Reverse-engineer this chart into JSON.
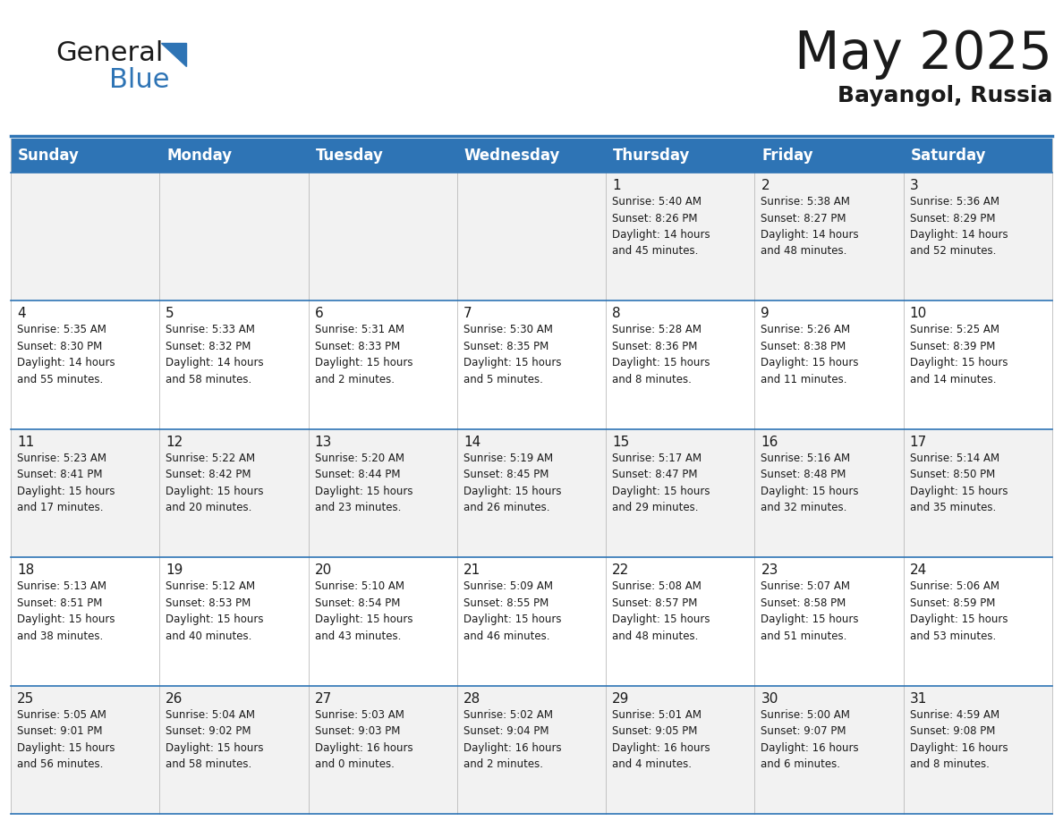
{
  "title": "May 2025",
  "subtitle": "Bayangol, Russia",
  "header_color": "#2E74B5",
  "header_text_color": "#FFFFFF",
  "cell_bg_odd": "#F2F2F2",
  "cell_bg_even": "#FFFFFF",
  "border_color": "#2E74B5",
  "text_color": "#1a1a1a",
  "days_of_week": [
    "Sunday",
    "Monday",
    "Tuesday",
    "Wednesday",
    "Thursday",
    "Friday",
    "Saturday"
  ],
  "weeks": [
    [
      {
        "day": "",
        "info": ""
      },
      {
        "day": "",
        "info": ""
      },
      {
        "day": "",
        "info": ""
      },
      {
        "day": "",
        "info": ""
      },
      {
        "day": "1",
        "info": "Sunrise: 5:40 AM\nSunset: 8:26 PM\nDaylight: 14 hours\nand 45 minutes."
      },
      {
        "day": "2",
        "info": "Sunrise: 5:38 AM\nSunset: 8:27 PM\nDaylight: 14 hours\nand 48 minutes."
      },
      {
        "day": "3",
        "info": "Sunrise: 5:36 AM\nSunset: 8:29 PM\nDaylight: 14 hours\nand 52 minutes."
      }
    ],
    [
      {
        "day": "4",
        "info": "Sunrise: 5:35 AM\nSunset: 8:30 PM\nDaylight: 14 hours\nand 55 minutes."
      },
      {
        "day": "5",
        "info": "Sunrise: 5:33 AM\nSunset: 8:32 PM\nDaylight: 14 hours\nand 58 minutes."
      },
      {
        "day": "6",
        "info": "Sunrise: 5:31 AM\nSunset: 8:33 PM\nDaylight: 15 hours\nand 2 minutes."
      },
      {
        "day": "7",
        "info": "Sunrise: 5:30 AM\nSunset: 8:35 PM\nDaylight: 15 hours\nand 5 minutes."
      },
      {
        "day": "8",
        "info": "Sunrise: 5:28 AM\nSunset: 8:36 PM\nDaylight: 15 hours\nand 8 minutes."
      },
      {
        "day": "9",
        "info": "Sunrise: 5:26 AM\nSunset: 8:38 PM\nDaylight: 15 hours\nand 11 minutes."
      },
      {
        "day": "10",
        "info": "Sunrise: 5:25 AM\nSunset: 8:39 PM\nDaylight: 15 hours\nand 14 minutes."
      }
    ],
    [
      {
        "day": "11",
        "info": "Sunrise: 5:23 AM\nSunset: 8:41 PM\nDaylight: 15 hours\nand 17 minutes."
      },
      {
        "day": "12",
        "info": "Sunrise: 5:22 AM\nSunset: 8:42 PM\nDaylight: 15 hours\nand 20 minutes."
      },
      {
        "day": "13",
        "info": "Sunrise: 5:20 AM\nSunset: 8:44 PM\nDaylight: 15 hours\nand 23 minutes."
      },
      {
        "day": "14",
        "info": "Sunrise: 5:19 AM\nSunset: 8:45 PM\nDaylight: 15 hours\nand 26 minutes."
      },
      {
        "day": "15",
        "info": "Sunrise: 5:17 AM\nSunset: 8:47 PM\nDaylight: 15 hours\nand 29 minutes."
      },
      {
        "day": "16",
        "info": "Sunrise: 5:16 AM\nSunset: 8:48 PM\nDaylight: 15 hours\nand 32 minutes."
      },
      {
        "day": "17",
        "info": "Sunrise: 5:14 AM\nSunset: 8:50 PM\nDaylight: 15 hours\nand 35 minutes."
      }
    ],
    [
      {
        "day": "18",
        "info": "Sunrise: 5:13 AM\nSunset: 8:51 PM\nDaylight: 15 hours\nand 38 minutes."
      },
      {
        "day": "19",
        "info": "Sunrise: 5:12 AM\nSunset: 8:53 PM\nDaylight: 15 hours\nand 40 minutes."
      },
      {
        "day": "20",
        "info": "Sunrise: 5:10 AM\nSunset: 8:54 PM\nDaylight: 15 hours\nand 43 minutes."
      },
      {
        "day": "21",
        "info": "Sunrise: 5:09 AM\nSunset: 8:55 PM\nDaylight: 15 hours\nand 46 minutes."
      },
      {
        "day": "22",
        "info": "Sunrise: 5:08 AM\nSunset: 8:57 PM\nDaylight: 15 hours\nand 48 minutes."
      },
      {
        "day": "23",
        "info": "Sunrise: 5:07 AM\nSunset: 8:58 PM\nDaylight: 15 hours\nand 51 minutes."
      },
      {
        "day": "24",
        "info": "Sunrise: 5:06 AM\nSunset: 8:59 PM\nDaylight: 15 hours\nand 53 minutes."
      }
    ],
    [
      {
        "day": "25",
        "info": "Sunrise: 5:05 AM\nSunset: 9:01 PM\nDaylight: 15 hours\nand 56 minutes."
      },
      {
        "day": "26",
        "info": "Sunrise: 5:04 AM\nSunset: 9:02 PM\nDaylight: 15 hours\nand 58 minutes."
      },
      {
        "day": "27",
        "info": "Sunrise: 5:03 AM\nSunset: 9:03 PM\nDaylight: 16 hours\nand 0 minutes."
      },
      {
        "day": "28",
        "info": "Sunrise: 5:02 AM\nSunset: 9:04 PM\nDaylight: 16 hours\nand 2 minutes."
      },
      {
        "day": "29",
        "info": "Sunrise: 5:01 AM\nSunset: 9:05 PM\nDaylight: 16 hours\nand 4 minutes."
      },
      {
        "day": "30",
        "info": "Sunrise: 5:00 AM\nSunset: 9:07 PM\nDaylight: 16 hours\nand 6 minutes."
      },
      {
        "day": "31",
        "info": "Sunrise: 4:59 AM\nSunset: 9:08 PM\nDaylight: 16 hours\nand 8 minutes."
      }
    ]
  ],
  "logo_general_color": "#1a1a1a",
  "logo_blue_color": "#2E74B5",
  "title_fontsize": 42,
  "subtitle_fontsize": 18,
  "header_fontsize": 12,
  "day_num_fontsize": 11,
  "info_fontsize": 8.5
}
